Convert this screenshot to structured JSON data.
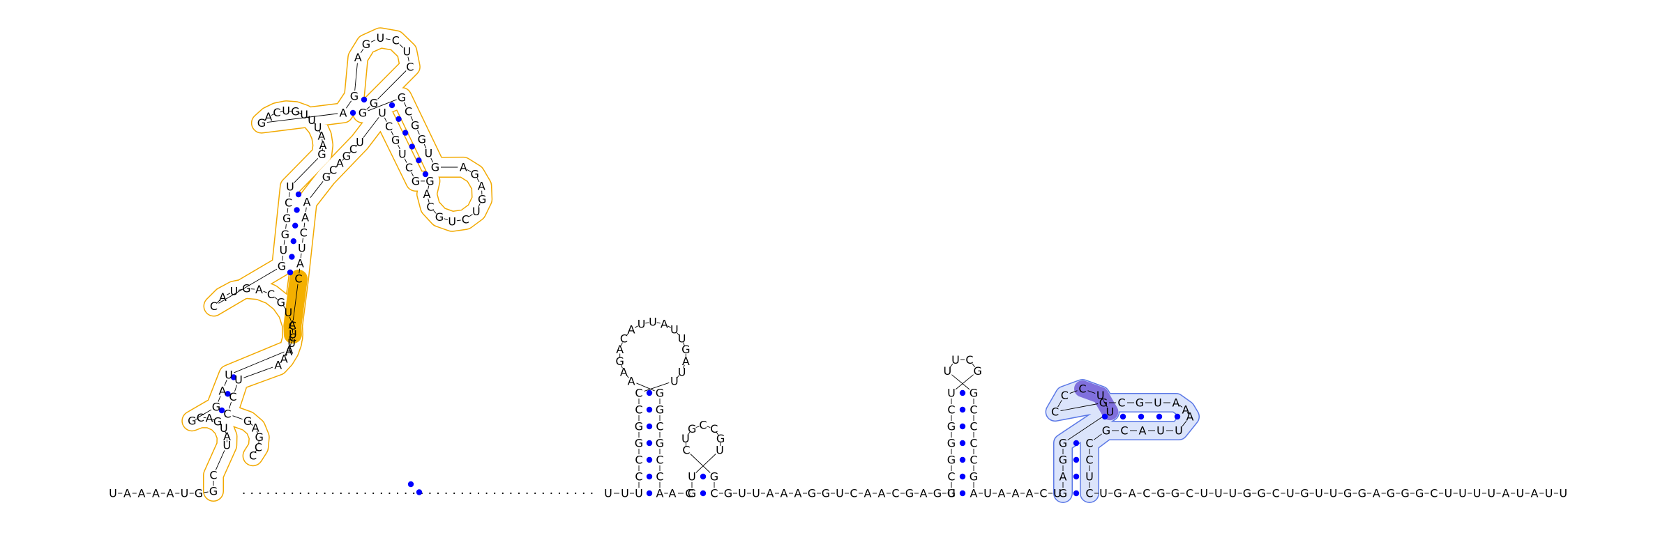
{
  "colors": {
    "pair_dot": "#0000ff",
    "backbone": "#000000",
    "left_domain_outline": "#f2a900",
    "left_domain_highlight": "#f4b000",
    "right_domain_fill": "#dbe4fb",
    "right_domain_outline": "#5b78e6",
    "right_domain_dark": "#8070dd"
  },
  "sequence": {
    "prefix": "UAAAAUG",
    "left_domain": "GCUAUGACGGAUACAUGCAGUACGUGGCUGAAUUUGUCAGAGAGUCUCGGGCGGUGAGAGUCUGCAGGCUGCUUCGACGAACUACCUUAAAUCCGAGCC",
    "linker_dot_count": 44,
    "hairpin1": "UUUCCGGCCUUAGUUAUUACAGAAGGCGCCAAC",
    "hairpin2": "GUUGCCGUCGC",
    "spacer1": "GUUAAAGGUCAACGAGG",
    "hairpin3": "UCGGGCUGCUUGCCCCGA",
    "spacer2": "UAAACU",
    "right_domain": "GAGGUUCCCGCGUAAAUUACGCCUC",
    "tail": "UGACGGCUUUGGCUGUUGGAGGGCUUUUAUAUU"
  }
}
